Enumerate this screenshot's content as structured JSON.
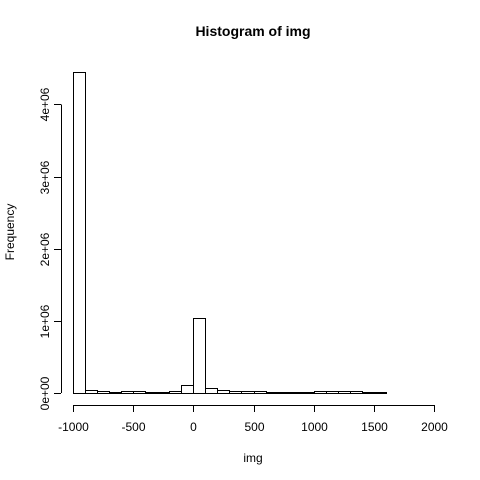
{
  "chart_data": {
    "type": "bar",
    "title": "Histogram of img",
    "xlabel": "img",
    "ylabel": "Frequency",
    "xlim": [
      -1000,
      2000
    ],
    "ylim": [
      0,
      4450000
    ],
    "bin_width": 100,
    "bin_starts": [
      -1000,
      -900,
      -800,
      -700,
      -600,
      -500,
      -400,
      -300,
      -200,
      -100,
      0,
      100,
      200,
      300,
      400,
      500,
      600,
      700,
      800,
      900,
      1000,
      1100,
      1200,
      1300,
      1400,
      1500,
      1600,
      1700,
      1800,
      1900
    ],
    "values": [
      4450000,
      40000,
      25000,
      20000,
      22000,
      22000,
      20000,
      20000,
      22000,
      105000,
      1040000,
      70000,
      45000,
      32000,
      25000,
      22000,
      20000,
      20000,
      20000,
      20000,
      22000,
      22000,
      22000,
      22000,
      15000,
      8000,
      1000,
      500,
      300,
      200
    ],
    "x_ticks": [
      -1000,
      -500,
      0,
      500,
      1000,
      1500,
      2000
    ],
    "x_tick_labels": [
      "-1000",
      "-500",
      "0",
      "500",
      "1000",
      "1500",
      "2000"
    ],
    "y_ticks": [
      0,
      1000000,
      2000000,
      3000000,
      4000000
    ],
    "y_tick_labels": [
      "0e+00",
      "1e+06",
      "2e+06",
      "3e+06",
      "4e+06"
    ],
    "grid": false,
    "legend": "none"
  }
}
